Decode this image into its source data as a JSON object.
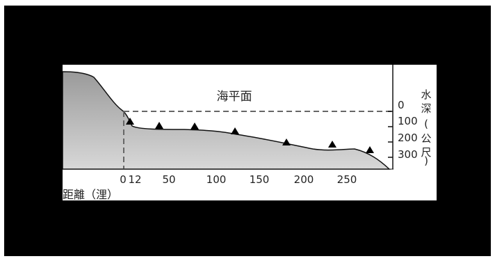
{
  "colors": {
    "background": "#000000",
    "panel": "#ffffff",
    "terrain_top": "#9a9a9a",
    "terrain_bottom": "#d8d8d8",
    "outline": "#111111",
    "dashed": "#666666",
    "marker": "#000000"
  },
  "sea_level_label": "海平面",
  "x_axis": {
    "title": "距離（浬）",
    "ticks": [
      "0",
      "12",
      "50",
      "100",
      "150",
      "200",
      "250"
    ]
  },
  "y_axis": {
    "title_lines": [
      "水",
      "深",
      "(",
      "公",
      "尺",
      ")"
    ],
    "ticks": [
      "0",
      "100",
      "200",
      "300"
    ]
  },
  "markers": {
    "shape": "triangle",
    "count": 7
  }
}
